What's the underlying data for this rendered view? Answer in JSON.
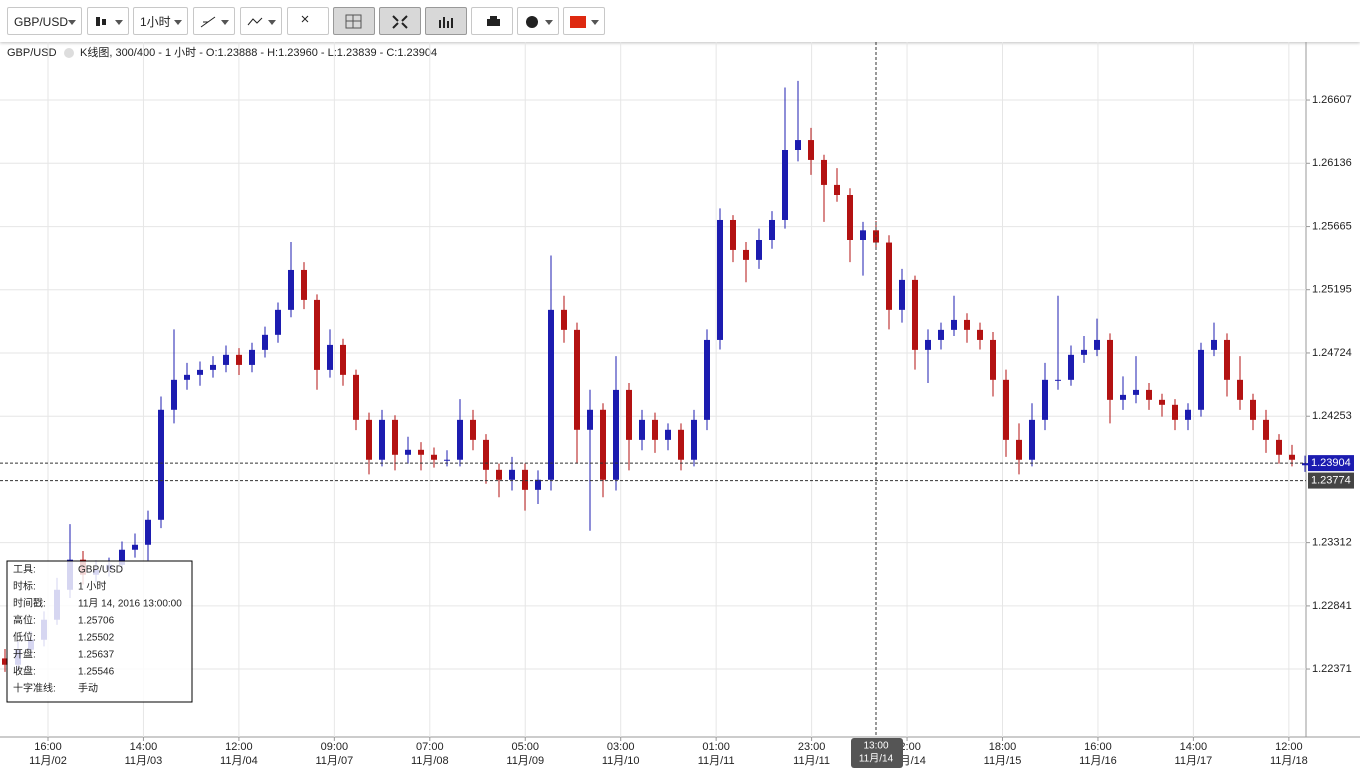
{
  "toolbar": {
    "symbol": "GBP/USD",
    "interval": "1小时"
  },
  "chart_data": {
    "type": "candlestick",
    "symbol": "GBP/USD",
    "info": "K线图, 300/400 - 1 小时 - O:1.23888 - H:1.23960 - L:1.23839 - C:1.23904",
    "up_color": "#1c1cb0",
    "down_color": "#b31212",
    "ylim": [
      1.21865,
      1.27039
    ],
    "yticks": [
      1.26607,
      1.26136,
      1.25665,
      1.25195,
      1.24724,
      1.24253,
      1.23312,
      1.22841,
      1.22371
    ],
    "grid": true,
    "xticks": [
      [
        "16:00",
        "11月/02"
      ],
      [
        "14:00",
        "11月/03"
      ],
      [
        "12:00",
        "11月/04"
      ],
      [
        "09:00",
        "11月/07"
      ],
      [
        "07:00",
        "11月/08"
      ],
      [
        "05:00",
        "11月/09"
      ],
      [
        "03:00",
        "11月/10"
      ],
      [
        "01:00",
        "11月/11"
      ],
      [
        "23:00",
        "11月/11"
      ],
      [
        "22:00",
        "11月/14"
      ],
      [
        "18:00",
        "11月/15"
      ],
      [
        "16:00",
        "11月/16"
      ],
      [
        "14:00",
        "11月/17"
      ],
      [
        "12:00",
        "11月/18"
      ]
    ],
    "current_price": 1.23904,
    "crosshair": {
      "price": 1.23774,
      "time": "13:00",
      "date": "11月/14",
      "index": 67
    },
    "infobox": [
      [
        "工具:",
        "GBP/USD"
      ],
      [
        "时标:",
        "1 小时"
      ],
      [
        "时间戳:",
        "11月 14, 2016 13:00:00"
      ],
      [
        "高位:",
        "1.25706"
      ],
      [
        "低位:",
        "1.25502"
      ],
      [
        "开盘:",
        "1.25637"
      ],
      [
        "收盘:",
        "1.25546"
      ],
      [
        "十字准线:",
        "手动"
      ]
    ],
    "candles": [
      [
        1.2245,
        1.2252,
        1.2235,
        1.22403
      ],
      [
        1.22403,
        1.2258,
        1.2236,
        1.22515
      ],
      [
        1.22515,
        1.2265,
        1.2247,
        1.22589
      ],
      [
        1.22589,
        1.228,
        1.2254,
        1.22738
      ],
      [
        1.22738,
        1.2305,
        1.227,
        1.22961
      ],
      [
        1.22961,
        1.2345,
        1.229,
        1.23185
      ],
      [
        1.23185,
        1.2325,
        1.23,
        1.23073
      ],
      [
        1.23073,
        1.2318,
        1.2302,
        1.2311
      ],
      [
        1.2311,
        1.232,
        1.2306,
        1.23147
      ],
      [
        1.23147,
        1.2332,
        1.231,
        1.23259
      ],
      [
        1.23259,
        1.2338,
        1.232,
        1.23296
      ],
      [
        1.23296,
        1.2355,
        1.2318,
        1.23482
      ],
      [
        1.23482,
        1.244,
        1.2342,
        1.24301
      ],
      [
        1.24301,
        1.249,
        1.242,
        1.24524
      ],
      [
        1.24524,
        1.2465,
        1.2445,
        1.24561
      ],
      [
        1.24561,
        1.2466,
        1.2448,
        1.24598
      ],
      [
        1.24598,
        1.247,
        1.2454,
        1.24635
      ],
      [
        1.24635,
        1.2478,
        1.2458,
        1.2471
      ],
      [
        1.2471,
        1.2476,
        1.2456,
        1.24635
      ],
      [
        1.24635,
        1.248,
        1.2458,
        1.24747
      ],
      [
        1.24747,
        1.2492,
        1.2469,
        1.24859
      ],
      [
        1.24859,
        1.251,
        1.248,
        1.25045
      ],
      [
        1.25045,
        1.2555,
        1.2499,
        1.25342
      ],
      [
        1.25342,
        1.254,
        1.2505,
        1.25119
      ],
      [
        1.25119,
        1.2516,
        1.2445,
        1.24598
      ],
      [
        1.24598,
        1.249,
        1.2454,
        1.24784
      ],
      [
        1.24784,
        1.2483,
        1.2448,
        1.24561
      ],
      [
        1.24561,
        1.246,
        1.2415,
        1.24226
      ],
      [
        1.24226,
        1.2428,
        1.2382,
        1.23929
      ],
      [
        1.23929,
        1.243,
        1.2388,
        1.24226
      ],
      [
        1.24226,
        1.2426,
        1.2385,
        1.23966
      ],
      [
        1.23966,
        1.241,
        1.239,
        1.24003
      ],
      [
        1.24003,
        1.2406,
        1.2385,
        1.23966
      ],
      [
        1.23966,
        1.2402,
        1.2387,
        1.23929
      ],
      [
        1.23929,
        1.24,
        1.2388,
        1.23929
      ],
      [
        1.23929,
        1.2438,
        1.2388,
        1.24226
      ],
      [
        1.24226,
        1.243,
        1.24,
        1.24077
      ],
      [
        1.24077,
        1.2412,
        1.2375,
        1.23854
      ],
      [
        1.23854,
        1.239,
        1.2365,
        1.2378
      ],
      [
        1.2378,
        1.2395,
        1.237,
        1.23854
      ],
      [
        1.23854,
        1.239,
        1.2355,
        1.23705
      ],
      [
        1.23705,
        1.2385,
        1.236,
        1.2378
      ],
      [
        1.2378,
        1.2545,
        1.237,
        1.25045
      ],
      [
        1.25045,
        1.2515,
        1.248,
        1.24896
      ],
      [
        1.24896,
        1.2495,
        1.239,
        1.24152
      ],
      [
        1.24152,
        1.2445,
        1.234,
        1.24301
      ],
      [
        1.24301,
        1.2435,
        1.2365,
        1.2378
      ],
      [
        1.2378,
        1.247,
        1.237,
        1.24449
      ],
      [
        1.24449,
        1.245,
        1.2385,
        1.24077
      ],
      [
        1.24077,
        1.243,
        1.24,
        1.24226
      ],
      [
        1.24226,
        1.2428,
        1.2398,
        1.24077
      ],
      [
        1.24077,
        1.242,
        1.24,
        1.24152
      ],
      [
        1.24152,
        1.242,
        1.2385,
        1.23929
      ],
      [
        1.23929,
        1.243,
        1.2388,
        1.24226
      ],
      [
        1.24226,
        1.249,
        1.2415,
        1.24821
      ],
      [
        1.24821,
        1.258,
        1.2475,
        1.25714
      ],
      [
        1.25714,
        1.2575,
        1.254,
        1.25491
      ],
      [
        1.25491,
        1.2555,
        1.2525,
        1.25417
      ],
      [
        1.25417,
        1.2565,
        1.2535,
        1.25565
      ],
      [
        1.25565,
        1.2578,
        1.255,
        1.25714
      ],
      [
        1.25714,
        1.267,
        1.2565,
        1.26235
      ],
      [
        1.26235,
        1.2675,
        1.2615,
        1.26309
      ],
      [
        1.26309,
        1.264,
        1.2605,
        1.26161
      ],
      [
        1.26161,
        1.262,
        1.257,
        1.25975
      ],
      [
        1.25975,
        1.261,
        1.2585,
        1.259
      ],
      [
        1.259,
        1.2595,
        1.254,
        1.25565
      ],
      [
        1.25565,
        1.257,
        1.253,
        1.25637
      ],
      [
        1.25637,
        1.25706,
        1.25502,
        1.25546
      ],
      [
        1.25546,
        1.256,
        1.249,
        1.25045
      ],
      [
        1.25045,
        1.2535,
        1.2495,
        1.25268
      ],
      [
        1.25268,
        1.253,
        1.246,
        1.24747
      ],
      [
        1.24747,
        1.249,
        1.245,
        1.24821
      ],
      [
        1.24821,
        1.2495,
        1.2475,
        1.24896
      ],
      [
        1.24896,
        1.2515,
        1.2485,
        1.2497
      ],
      [
        1.2497,
        1.2502,
        1.248,
        1.24896
      ],
      [
        1.24896,
        1.2495,
        1.2475,
        1.24821
      ],
      [
        1.24821,
        1.2488,
        1.244,
        1.24524
      ],
      [
        1.24524,
        1.246,
        1.2395,
        1.24077
      ],
      [
        1.24077,
        1.242,
        1.2382,
        1.23929
      ],
      [
        1.23929,
        1.2435,
        1.2388,
        1.24226
      ],
      [
        1.24226,
        1.2465,
        1.2415,
        1.24524
      ],
      [
        1.24524,
        1.2515,
        1.2445,
        1.24524
      ],
      [
        1.24524,
        1.2478,
        1.2448,
        1.2471
      ],
      [
        1.2471,
        1.2485,
        1.2465,
        1.24747
      ],
      [
        1.24747,
        1.2498,
        1.247,
        1.24821
      ],
      [
        1.24821,
        1.2487,
        1.242,
        1.24375
      ],
      [
        1.24375,
        1.2455,
        1.243,
        1.24412
      ],
      [
        1.24412,
        1.247,
        1.2435,
        1.24449
      ],
      [
        1.24449,
        1.245,
        1.243,
        1.24375
      ],
      [
        1.24375,
        1.2442,
        1.2425,
        1.24338
      ],
      [
        1.24338,
        1.2438,
        1.2415,
        1.24226
      ],
      [
        1.24226,
        1.2435,
        1.2415,
        1.24301
      ],
      [
        1.24301,
        1.248,
        1.2425,
        1.24747
      ],
      [
        1.24747,
        1.2495,
        1.247,
        1.24821
      ],
      [
        1.24821,
        1.2487,
        1.244,
        1.24524
      ],
      [
        1.24524,
        1.247,
        1.243,
        1.24375
      ],
      [
        1.24375,
        1.2442,
        1.2415,
        1.24226
      ],
      [
        1.24226,
        1.243,
        1.2398,
        1.24077
      ],
      [
        1.24077,
        1.2412,
        1.239,
        1.23966
      ],
      [
        1.23966,
        1.2404,
        1.2388,
        1.23929
      ],
      [
        1.23888,
        1.2396,
        1.23839,
        1.23904
      ]
    ]
  }
}
